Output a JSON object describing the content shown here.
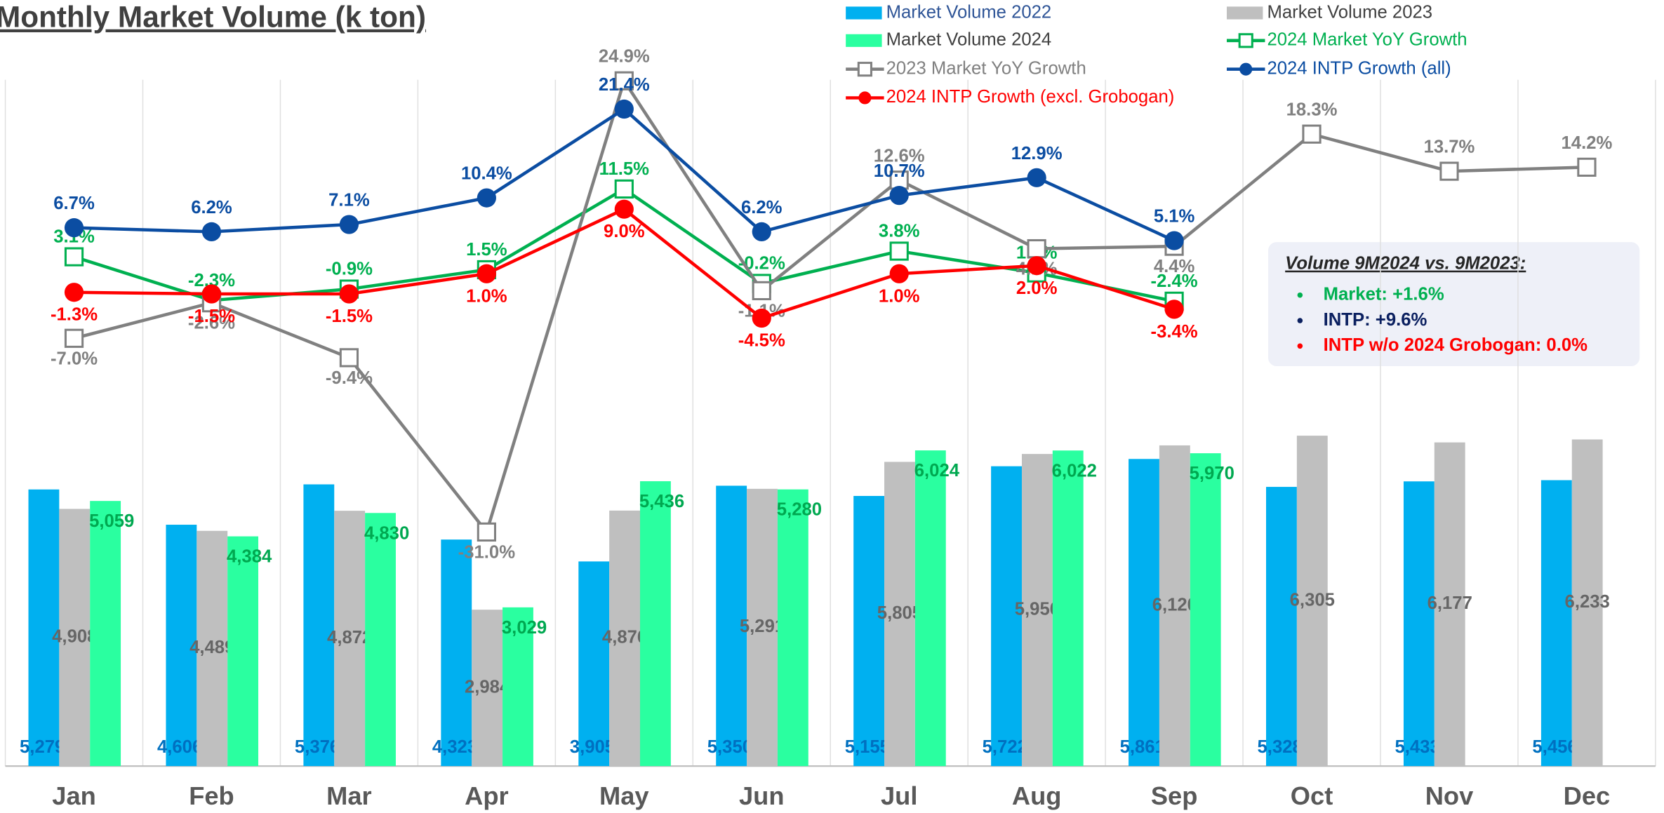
{
  "chart_data": {
    "type": "bar",
    "title": "Monthly Market Volume (k ton)",
    "categories": [
      "Jan",
      "Feb",
      "Mar",
      "Apr",
      "May",
      "Jun",
      "Jul",
      "Aug",
      "Sep",
      "Oct",
      "Nov",
      "Dec"
    ],
    "ylim": [
      0,
      13400
    ],
    "y2lim": [
      -60,
      27
    ],
    "grid": true,
    "legend": "top",
    "series": [
      {
        "name": "Market Volume 2022",
        "type": "bar",
        "color": "#00b0f0",
        "label_color": "#0070c0",
        "values": [
          5279,
          4606,
          5376,
          4323,
          3905,
          5350,
          5155,
          5722,
          5861,
          5328,
          5433,
          5456
        ],
        "value_labels": [
          "5,279",
          "4,606",
          "5,376",
          "4,323",
          "3,905",
          "5,350",
          "5,155",
          "5,722",
          "5,861",
          "5,328",
          "5,433",
          "5,456"
        ]
      },
      {
        "name": "Market Volume 2023",
        "type": "bar",
        "color": "#bfbfbf",
        "label_color": "#666666",
        "values": [
          4908,
          4489,
          4872,
          2984,
          4876,
          5291,
          5805,
          5956,
          6120,
          6305,
          6177,
          6233
        ],
        "value_labels": [
          "4,908",
          "4,489",
          "4,872",
          "2,984",
          "4,876",
          "5,291",
          "5,805",
          "5,956",
          "6,120",
          "6,305",
          "6,177",
          "6,233"
        ]
      },
      {
        "name": "Market Volume 2024",
        "type": "bar",
        "color": "#2affa0",
        "label_color": "#00a850",
        "values": [
          5059,
          4384,
          4830,
          3029,
          5436,
          5280,
          6024,
          6022,
          5970,
          null,
          null,
          null
        ],
        "value_labels": [
          "5,059",
          "4,384",
          "4,830",
          "3,029",
          "5,436",
          "5,280",
          "6,024",
          "6,022",
          "5,970",
          null,
          null,
          null
        ]
      },
      {
        "name": "2024 Market YoY Growth",
        "type": "line",
        "axis": "y2",
        "marker": "square",
        "color": "#00b050",
        "values": [
          3.1,
          -2.3,
          -0.9,
          1.5,
          11.5,
          -0.2,
          3.8,
          1.1,
          -2.4,
          null,
          null,
          null
        ],
        "value_labels": [
          "3.1%",
          "-2.3%",
          "-0.9%",
          "1.5%",
          "11.5%",
          "-0.2%",
          "3.8%",
          "1.1%",
          "-2.4%",
          null,
          null,
          null
        ]
      },
      {
        "name": "2023 Market YoY Growth",
        "type": "line",
        "axis": "y2",
        "marker": "square",
        "color": "#808080",
        "values": [
          -7.0,
          -2.6,
          -9.4,
          -31.0,
          24.9,
          -1.1,
          12.6,
          4.1,
          4.4,
          18.3,
          13.7,
          14.2
        ],
        "value_labels": [
          "-7.0%",
          "-2.6%",
          "-9.4%",
          "-31.0%",
          "24.9%",
          "-1.1%",
          "12.6%",
          "4.1%",
          "4.4%",
          "18.3%",
          "13.7%",
          "14.2%"
        ]
      },
      {
        "name": "2024 INTP Growth (all)",
        "type": "line",
        "axis": "y2",
        "marker": "circle",
        "color": "#0b4da2",
        "values": [
          6.7,
          6.2,
          7.1,
          10.4,
          21.4,
          6.2,
          10.7,
          12.9,
          5.1,
          null,
          null,
          null
        ],
        "value_labels": [
          "6.7%",
          "6.2%",
          "7.1%",
          "10.4%",
          "21.4%",
          "6.2%",
          "10.7%",
          "12.9%",
          "5.1%",
          null,
          null,
          null
        ]
      },
      {
        "name": "2024 INTP Growth (excl. Grobogan)",
        "type": "line",
        "axis": "y2",
        "marker": "circle",
        "color": "#ff0000",
        "values": [
          -1.3,
          -1.5,
          -1.5,
          1.0,
          9.0,
          -4.5,
          1.0,
          2.0,
          -3.4,
          null,
          null,
          null
        ],
        "value_labels": [
          "-1.3%",
          "-1.5%",
          "-1.5%",
          "1.0%",
          "9.0%",
          "-4.5%",
          "1.0%",
          "2.0%",
          "-3.4%",
          null,
          null,
          null
        ]
      }
    ],
    "annotation": {
      "title": "Volume 9M2024 vs. 9M2023:",
      "items": [
        {
          "text": "Market: +1.6%",
          "color": "#00b050"
        },
        {
          "text": "INTP: +9.6%",
          "color": "#0b2060"
        },
        {
          "text": "INTP w/o 2024 Grobogan: 0.0%",
          "color": "#ff0000"
        }
      ]
    }
  }
}
